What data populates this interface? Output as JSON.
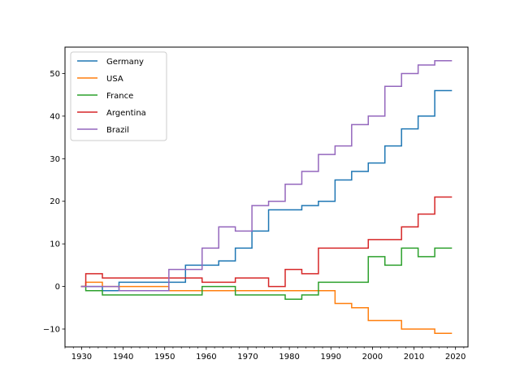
{
  "chart_data": {
    "type": "line",
    "step": "post",
    "title": "",
    "xlabel": "",
    "ylabel": "",
    "xlim": [
      1926,
      2023
    ],
    "ylim": [
      -14.2,
      56.2
    ],
    "xticks": [
      1930,
      1940,
      1950,
      1960,
      1970,
      1980,
      1990,
      2000,
      2010,
      2020
    ],
    "xminor_step": 2,
    "yticks": [
      -10,
      0,
      10,
      20,
      30,
      40,
      50
    ],
    "grid": false,
    "legend_position": "upper left",
    "x": [
      1930,
      1931,
      1935,
      1939,
      1951,
      1955,
      1959,
      1963,
      1967,
      1971,
      1975,
      1979,
      1983,
      1987,
      1991,
      1995,
      1999,
      2003,
      2007,
      2011,
      2015,
      2019
    ],
    "series": [
      {
        "name": "Germany",
        "color": "#1f77b4",
        "values": [
          0,
          0,
          -1,
          1,
          1,
          5,
          5,
          6,
          9,
          13,
          18,
          18,
          19,
          20,
          25,
          27,
          29,
          33,
          37,
          40,
          46,
          46
        ]
      },
      {
        "name": "USA",
        "color": "#ff7f0e",
        "values": [
          0,
          1,
          0,
          0,
          -1,
          -1,
          -1,
          -1,
          -1,
          -1,
          -1,
          -1,
          -1,
          -1,
          -4,
          -5,
          -8,
          -8,
          -10,
          -10,
          -11,
          -11
        ]
      },
      {
        "name": "France",
        "color": "#2ca02c",
        "values": [
          0,
          -1,
          -2,
          -2,
          -2,
          -2,
          0,
          0,
          -2,
          -2,
          -2,
          -3,
          -2,
          1,
          1,
          1,
          7,
          5,
          9,
          7,
          9,
          9
        ]
      },
      {
        "name": "Argentina",
        "color": "#d62728",
        "values": [
          0,
          3,
          2,
          2,
          2,
          2,
          1,
          1,
          2,
          2,
          0,
          4,
          3,
          9,
          9,
          9,
          11,
          11,
          14,
          17,
          21,
          21
        ]
      },
      {
        "name": "Brazil",
        "color": "#9467bd",
        "values": [
          0,
          0,
          0,
          -1,
          4,
          4,
          9,
          14,
          13,
          19,
          20,
          24,
          27,
          31,
          33,
          38,
          40,
          47,
          50,
          52,
          53,
          53
        ]
      }
    ]
  }
}
